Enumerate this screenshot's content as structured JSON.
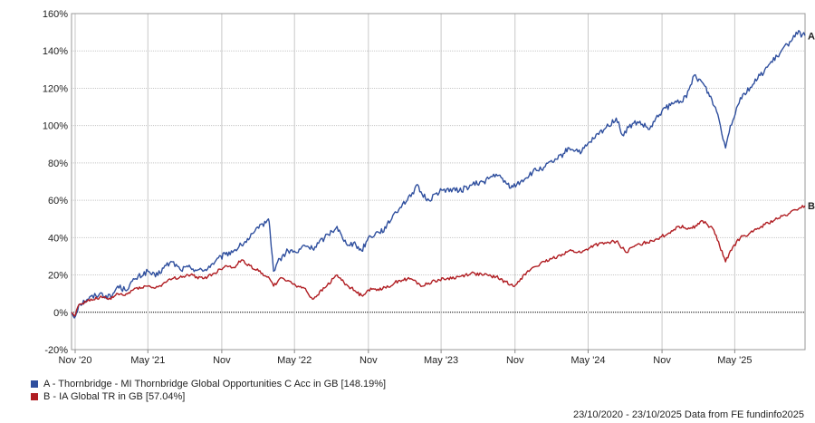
{
  "chart_data": {
    "type": "line",
    "title": "",
    "xlabel": "",
    "ylabel": "",
    "x_range": [
      "2020-10-23",
      "2025-10-23"
    ],
    "ylim": [
      -20,
      160
    ],
    "y_ticks": [
      -20,
      0,
      20,
      40,
      60,
      80,
      100,
      120,
      140,
      160
    ],
    "y_tick_labels": [
      "-20%",
      "0%",
      "20%",
      "40%",
      "60%",
      "80%",
      "100%",
      "120%",
      "140%",
      "160%"
    ],
    "x_ticks": [
      {
        "date": "2020-11-01",
        "label": "Nov '20"
      },
      {
        "date": "2021-05-01",
        "label": "May '21"
      },
      {
        "date": "2021-11-01",
        "label": "Nov"
      },
      {
        "date": "2022-05-01",
        "label": "May '22"
      },
      {
        "date": "2022-11-01",
        "label": "Nov"
      },
      {
        "date": "2023-05-01",
        "label": "May '23"
      },
      {
        "date": "2023-11-01",
        "label": "Nov"
      },
      {
        "date": "2024-05-01",
        "label": "May '24"
      },
      {
        "date": "2024-11-01",
        "label": "Nov"
      },
      {
        "date": "2025-05-01",
        "label": "May '25"
      }
    ],
    "grid": true,
    "series": [
      {
        "name": "A - Thornbridge - MI Thornbridge Global Opportunities C Acc in GB [148.19%]",
        "end_label": "A",
        "color": "#2f4f9e",
        "points": [
          [
            "2020-10-23",
            0
          ],
          [
            "2020-10-30",
            -3
          ],
          [
            "2020-11-10",
            4
          ],
          [
            "2020-12-01",
            7
          ],
          [
            "2021-01-01",
            10
          ],
          [
            "2021-01-29",
            8
          ],
          [
            "2021-02-15",
            14
          ],
          [
            "2021-03-05",
            12
          ],
          [
            "2021-04-01",
            18
          ],
          [
            "2021-05-01",
            22
          ],
          [
            "2021-05-20",
            19
          ],
          [
            "2021-06-15",
            25
          ],
          [
            "2021-07-01",
            27
          ],
          [
            "2021-07-20",
            23
          ],
          [
            "2021-08-15",
            24
          ],
          [
            "2021-09-15",
            22
          ],
          [
            "2021-10-15",
            27
          ],
          [
            "2021-11-10",
            31
          ],
          [
            "2021-12-01",
            33
          ],
          [
            "2021-12-20",
            36
          ],
          [
            "2022-01-10",
            40
          ],
          [
            "2022-02-01",
            45
          ],
          [
            "2022-02-25",
            50
          ],
          [
            "2022-03-01",
            44
          ],
          [
            "2022-03-10",
            22
          ],
          [
            "2022-03-20",
            27
          ],
          [
            "2022-04-15",
            33
          ],
          [
            "2022-05-10",
            32
          ],
          [
            "2022-05-25",
            36
          ],
          [
            "2022-06-15",
            34
          ],
          [
            "2022-07-15",
            40
          ],
          [
            "2022-08-15",
            46
          ],
          [
            "2022-09-01",
            38
          ],
          [
            "2022-10-01",
            36
          ],
          [
            "2022-10-15",
            33
          ],
          [
            "2022-11-01",
            40
          ],
          [
            "2022-11-25",
            43
          ],
          [
            "2022-12-15",
            45
          ],
          [
            "2023-01-01",
            52
          ],
          [
            "2023-01-25",
            58
          ],
          [
            "2023-02-15",
            62
          ],
          [
            "2023-02-28",
            68
          ],
          [
            "2023-03-15",
            63
          ],
          [
            "2023-04-01",
            60
          ],
          [
            "2023-04-20",
            64
          ],
          [
            "2023-05-15",
            66
          ],
          [
            "2023-06-15",
            65
          ],
          [
            "2023-07-15",
            68
          ],
          [
            "2023-08-15",
            70
          ],
          [
            "2023-09-15",
            74
          ],
          [
            "2023-10-10",
            69
          ],
          [
            "2023-10-27",
            67
          ],
          [
            "2023-11-15",
            70
          ],
          [
            "2023-12-15",
            75
          ],
          [
            "2024-01-15",
            78
          ],
          [
            "2024-02-15",
            82
          ],
          [
            "2024-03-15",
            88
          ],
          [
            "2024-04-15",
            86
          ],
          [
            "2024-05-15",
            93
          ],
          [
            "2024-06-15",
            99
          ],
          [
            "2024-07-10",
            104
          ],
          [
            "2024-07-25",
            95
          ],
          [
            "2024-08-10",
            99
          ],
          [
            "2024-09-01",
            102
          ],
          [
            "2024-10-01",
            98
          ],
          [
            "2024-11-01",
            108
          ],
          [
            "2024-12-01",
            112
          ],
          [
            "2025-01-01",
            115
          ],
          [
            "2025-01-20",
            127
          ],
          [
            "2025-02-10",
            123
          ],
          [
            "2025-03-05",
            114
          ],
          [
            "2025-03-20",
            106
          ],
          [
            "2025-04-08",
            88
          ],
          [
            "2025-04-20",
            100
          ],
          [
            "2025-05-15",
            115
          ],
          [
            "2025-06-15",
            122
          ],
          [
            "2025-07-15",
            130
          ],
          [
            "2025-08-15",
            137
          ],
          [
            "2025-09-15",
            145
          ],
          [
            "2025-10-01",
            150
          ],
          [
            "2025-10-23",
            148.19
          ]
        ]
      },
      {
        "name": "B - IA Global TR in GB [57.04%]",
        "end_label": "B",
        "color": "#b01d22",
        "points": [
          [
            "2020-10-23",
            0
          ],
          [
            "2020-10-30",
            -2
          ],
          [
            "2020-11-10",
            4
          ],
          [
            "2020-12-01",
            6
          ],
          [
            "2021-01-01",
            8
          ],
          [
            "2021-01-29",
            7
          ],
          [
            "2021-02-15",
            10
          ],
          [
            "2021-03-05",
            9
          ],
          [
            "2021-04-01",
            13
          ],
          [
            "2021-05-01",
            14
          ],
          [
            "2021-05-20",
            13
          ],
          [
            "2021-06-15",
            16
          ],
          [
            "2021-07-01",
            18
          ],
          [
            "2021-08-15",
            20
          ],
          [
            "2021-09-15",
            18
          ],
          [
            "2021-10-15",
            21
          ],
          [
            "2021-11-10",
            25
          ],
          [
            "2021-12-01",
            24
          ],
          [
            "2021-12-20",
            28
          ],
          [
            "2022-01-10",
            25
          ],
          [
            "2022-02-01",
            22
          ],
          [
            "2022-02-25",
            19
          ],
          [
            "2022-03-10",
            14
          ],
          [
            "2022-03-25",
            18
          ],
          [
            "2022-04-15",
            17
          ],
          [
            "2022-05-10",
            14
          ],
          [
            "2022-05-25",
            13
          ],
          [
            "2022-06-15",
            7
          ],
          [
            "2022-07-15",
            13
          ],
          [
            "2022-08-15",
            20
          ],
          [
            "2022-09-01",
            16
          ],
          [
            "2022-10-01",
            11
          ],
          [
            "2022-10-15",
            9
          ],
          [
            "2022-11-01",
            12
          ],
          [
            "2022-12-15",
            13
          ],
          [
            "2023-01-15",
            17
          ],
          [
            "2023-02-15",
            18
          ],
          [
            "2023-03-15",
            14
          ],
          [
            "2023-04-15",
            17
          ],
          [
            "2023-05-15",
            18
          ],
          [
            "2023-06-15",
            19
          ],
          [
            "2023-07-15",
            21
          ],
          [
            "2023-08-15",
            20
          ],
          [
            "2023-09-15",
            19
          ],
          [
            "2023-10-27",
            14
          ],
          [
            "2023-11-15",
            18
          ],
          [
            "2023-12-15",
            24
          ],
          [
            "2024-01-15",
            27
          ],
          [
            "2024-02-15",
            30
          ],
          [
            "2024-03-15",
            33
          ],
          [
            "2024-04-15",
            32
          ],
          [
            "2024-05-15",
            36
          ],
          [
            "2024-06-15",
            37
          ],
          [
            "2024-07-10",
            38
          ],
          [
            "2024-08-05",
            32
          ],
          [
            "2024-08-20",
            35
          ],
          [
            "2024-09-15",
            37
          ],
          [
            "2024-10-15",
            39
          ],
          [
            "2024-11-15",
            42
          ],
          [
            "2024-12-10",
            46
          ],
          [
            "2025-01-15",
            45
          ],
          [
            "2025-02-10",
            49
          ],
          [
            "2025-03-10",
            44
          ],
          [
            "2025-04-08",
            27
          ],
          [
            "2025-04-20",
            33
          ],
          [
            "2025-05-15",
            40
          ],
          [
            "2025-06-15",
            43
          ],
          [
            "2025-07-15",
            47
          ],
          [
            "2025-08-15",
            50
          ],
          [
            "2025-09-15",
            53
          ],
          [
            "2025-10-10",
            56
          ],
          [
            "2025-10-23",
            57.04
          ]
        ]
      }
    ],
    "legend": [
      {
        "label": "A - Thornbridge - MI Thornbridge Global Opportunities C Acc in GB [148.19%]",
        "color": "#2f4f9e"
      },
      {
        "label": "B - IA Global TR in GB [57.04%]",
        "color": "#b01d22"
      }
    ],
    "legend_position": "bottom-left",
    "footer": "23/10/2020 - 23/10/2025 Data from FE fundinfo2025"
  }
}
